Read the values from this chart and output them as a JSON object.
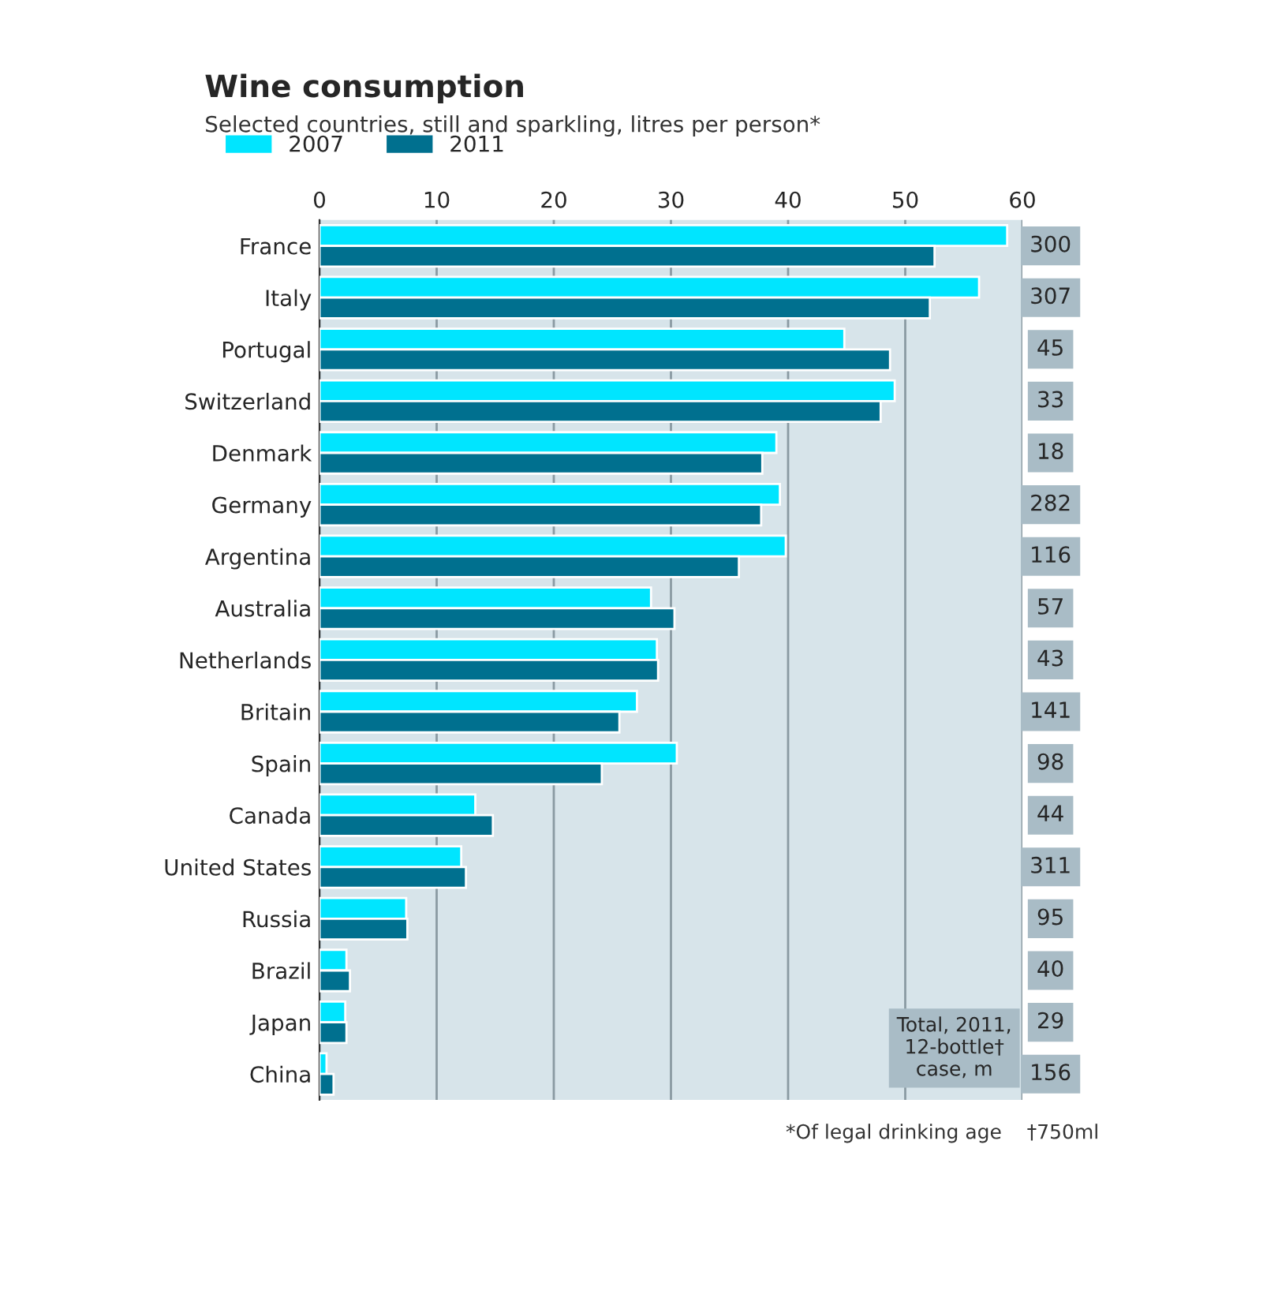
{
  "chart_data": {
    "type": "bar",
    "orientation": "horizontal",
    "title": "Wine consumption",
    "subtitle": "Selected countries, still and sparkling, litres per person*",
    "categories": [
      "France",
      "Italy",
      "Portugal",
      "Switzerland",
      "Denmark",
      "Germany",
      "Argentina",
      "Australia",
      "Netherlands",
      "Britain",
      "Spain",
      "Canada",
      "United States",
      "Russia",
      "Brazil",
      "Japan",
      "China"
    ],
    "series": [
      {
        "name": "2007",
        "color": "#00e5ff",
        "values": [
          58.7,
          56.3,
          44.8,
          49.1,
          39.0,
          39.3,
          39.8,
          28.3,
          28.8,
          27.1,
          30.5,
          13.3,
          12.1,
          7.4,
          2.3,
          2.2,
          0.6
        ]
      },
      {
        "name": "2011",
        "color": "#00708f",
        "values": [
          52.5,
          52.1,
          48.7,
          47.9,
          37.8,
          37.7,
          35.8,
          30.3,
          28.9,
          25.6,
          24.1,
          14.8,
          12.5,
          7.5,
          2.6,
          2.3,
          1.2
        ]
      }
    ],
    "xlim": [
      0,
      60
    ],
    "xticks": [
      0,
      10,
      20,
      30,
      40,
      50,
      60
    ],
    "grid": "x",
    "legend": "top left",
    "annotations": [
      "300",
      "307",
      "45",
      "33",
      "18",
      "282",
      "116",
      "57",
      "43",
      "141",
      "98",
      "44",
      "311",
      "95",
      "40",
      "29",
      "156",
      "Total, 2011, 12-bottle† case, m",
      "*Of legal drinking age",
      "†750ml"
    ]
  }
}
